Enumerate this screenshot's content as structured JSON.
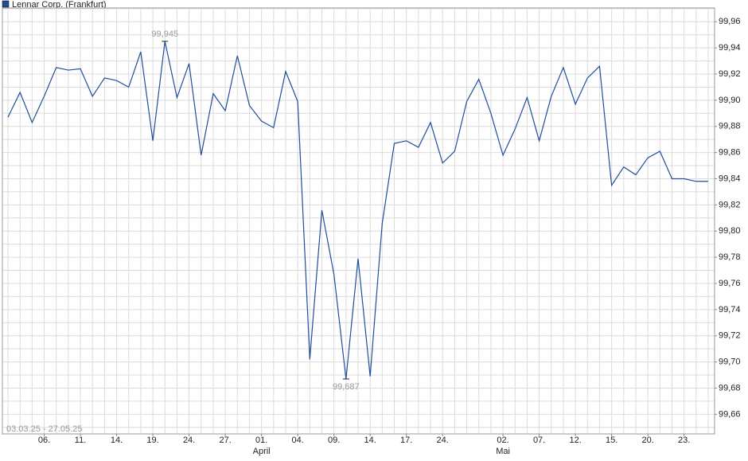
{
  "chart_data": {
    "type": "line",
    "legend_name": "Lennar Corp. (Frankfurt)",
    "date_range": "03.03.25 - 27.05.25",
    "categories": [
      null,
      null,
      null,
      "06.",
      null,
      null,
      "11.",
      null,
      null,
      "14.",
      null,
      null,
      "19.",
      null,
      null,
      "24.",
      null,
      null,
      "27.",
      null,
      null,
      "01.",
      null,
      null,
      "04.",
      null,
      null,
      "09.",
      null,
      null,
      "14.",
      null,
      null,
      "17.",
      null,
      null,
      "24.",
      null,
      null,
      null,
      null,
      "02.",
      null,
      null,
      "07.",
      null,
      null,
      "12.",
      null,
      null,
      "15.",
      null,
      null,
      "20.",
      null,
      null,
      "23.",
      null,
      null
    ],
    "month_labels": [
      null,
      null,
      null,
      null,
      null,
      null,
      null,
      null,
      null,
      null,
      null,
      null,
      null,
      null,
      null,
      null,
      null,
      null,
      null,
      null,
      null,
      "April",
      null,
      null,
      null,
      null,
      null,
      null,
      null,
      null,
      null,
      null,
      null,
      null,
      null,
      null,
      null,
      null,
      null,
      null,
      null,
      "Mai",
      null,
      null,
      null,
      null,
      null,
      null,
      null,
      null,
      null,
      null,
      null,
      null,
      null,
      null,
      null,
      null,
      null
    ],
    "series": [
      {
        "name": "Lennar Corp. (Frankfurt)",
        "color": "#1f4e9c",
        "values": [
          99.887,
          99.906,
          99.883,
          99.903,
          99.925,
          99.923,
          99.924,
          99.903,
          99.917,
          99.915,
          99.91,
          99.937,
          99.869,
          99.945,
          99.902,
          99.928,
          99.858,
          99.905,
          99.892,
          99.934,
          99.896,
          99.884,
          99.879,
          99.922,
          99.899,
          99.702,
          99.816,
          99.767,
          99.687,
          99.779,
          99.689,
          99.806,
          99.867,
          99.869,
          99.864,
          99.883,
          99.852,
          99.861,
          99.899,
          99.916,
          99.89,
          99.858,
          99.878,
          99.902,
          99.869,
          99.903,
          99.925,
          99.897,
          99.917,
          99.926,
          99.835,
          99.849,
          99.843,
          99.856,
          99.861,
          99.84,
          99.84,
          99.838,
          99.838
        ],
        "value_labels": [
          null,
          null,
          null,
          null,
          null,
          null,
          null,
          null,
          null,
          null,
          null,
          null,
          null,
          "99,945",
          null,
          null,
          null,
          null,
          null,
          null,
          null,
          null,
          null,
          null,
          null,
          null,
          null,
          null,
          "99,687",
          null,
          null,
          null,
          null,
          null,
          null,
          null,
          null,
          null,
          null,
          null,
          null,
          null,
          null,
          null,
          null,
          null,
          null,
          null,
          null,
          null,
          null,
          null,
          null,
          null,
          null,
          null,
          null,
          null,
          null
        ]
      }
    ],
    "ylim": [
      99.645,
      99.9705
    ],
    "yticks": [
      {
        "value": 99.66,
        "label": "99,66"
      },
      {
        "value": 99.68,
        "label": "99,68"
      },
      {
        "value": 99.7,
        "label": "99,70"
      },
      {
        "value": 99.72,
        "label": "99,72"
      },
      {
        "value": 99.74,
        "label": "99,74"
      },
      {
        "value": 99.76,
        "label": "99,76"
      },
      {
        "value": 99.78,
        "label": "99,78"
      },
      {
        "value": 99.8,
        "label": "99,80"
      },
      {
        "value": 99.82,
        "label": "99,82"
      },
      {
        "value": 99.84,
        "label": "99,84"
      },
      {
        "value": 99.86,
        "label": "99,86"
      },
      {
        "value": 99.88,
        "label": "99,88"
      },
      {
        "value": 99.9,
        "label": "99,90"
      },
      {
        "value": 99.92,
        "label": "99,92"
      },
      {
        "value": 99.94,
        "label": "99,94"
      },
      {
        "value": 99.96,
        "label": "99,96"
      }
    ],
    "y_minor_ticks": [
      99.65,
      99.67,
      99.69,
      99.71,
      99.73,
      99.75,
      99.77,
      99.79,
      99.81,
      99.83,
      99.85,
      99.87,
      99.89,
      99.91,
      99.93,
      99.95,
      99.97
    ],
    "grid": true
  }
}
